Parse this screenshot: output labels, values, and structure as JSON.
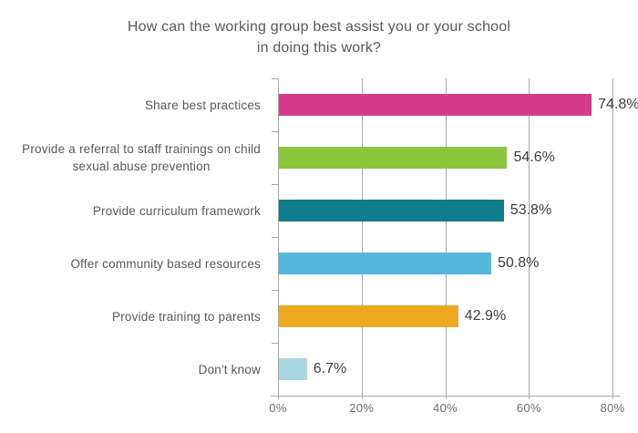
{
  "chart_data": {
    "type": "bar",
    "orientation": "horizontal",
    "title": "How can the working group best assist you or your school\nin doing this work?",
    "categories": [
      "Share best practices",
      "Provide a referral to staff trainings on child\nsexual abuse prevention",
      "Provide curriculum framework",
      "Offer community based resources",
      "Provide training to parents",
      "Don't know"
    ],
    "values": [
      74.8,
      54.6,
      53.8,
      50.8,
      42.9,
      6.7
    ],
    "value_labels": [
      "74.8%",
      "54.6%",
      "53.8%",
      "50.8%",
      "42.9%",
      "6.7%"
    ],
    "bar_colors": [
      "#D53B8B",
      "#8CC63C",
      "#0E7C8A",
      "#55B7DC",
      "#ECA91F",
      "#AAD8E2"
    ],
    "xlabel": "",
    "ylabel": "",
    "xlim": [
      0,
      80
    ],
    "x_ticks": [
      {
        "value": 0,
        "label": "0%"
      },
      {
        "value": 20,
        "label": "20%"
      },
      {
        "value": 40,
        "label": "40%"
      },
      {
        "value": 60,
        "label": "60%"
      },
      {
        "value": 80,
        "label": "80%"
      }
    ],
    "grid": true,
    "legend": false
  },
  "colors": {
    "background": "#FFFFFF",
    "grid": "#A7A9AC",
    "axis": "#A7A9AC",
    "title_text": "#58595B",
    "category_text": "#58595B",
    "value_text": "#3E3F41",
    "tick_text": "#6D6E71"
  }
}
